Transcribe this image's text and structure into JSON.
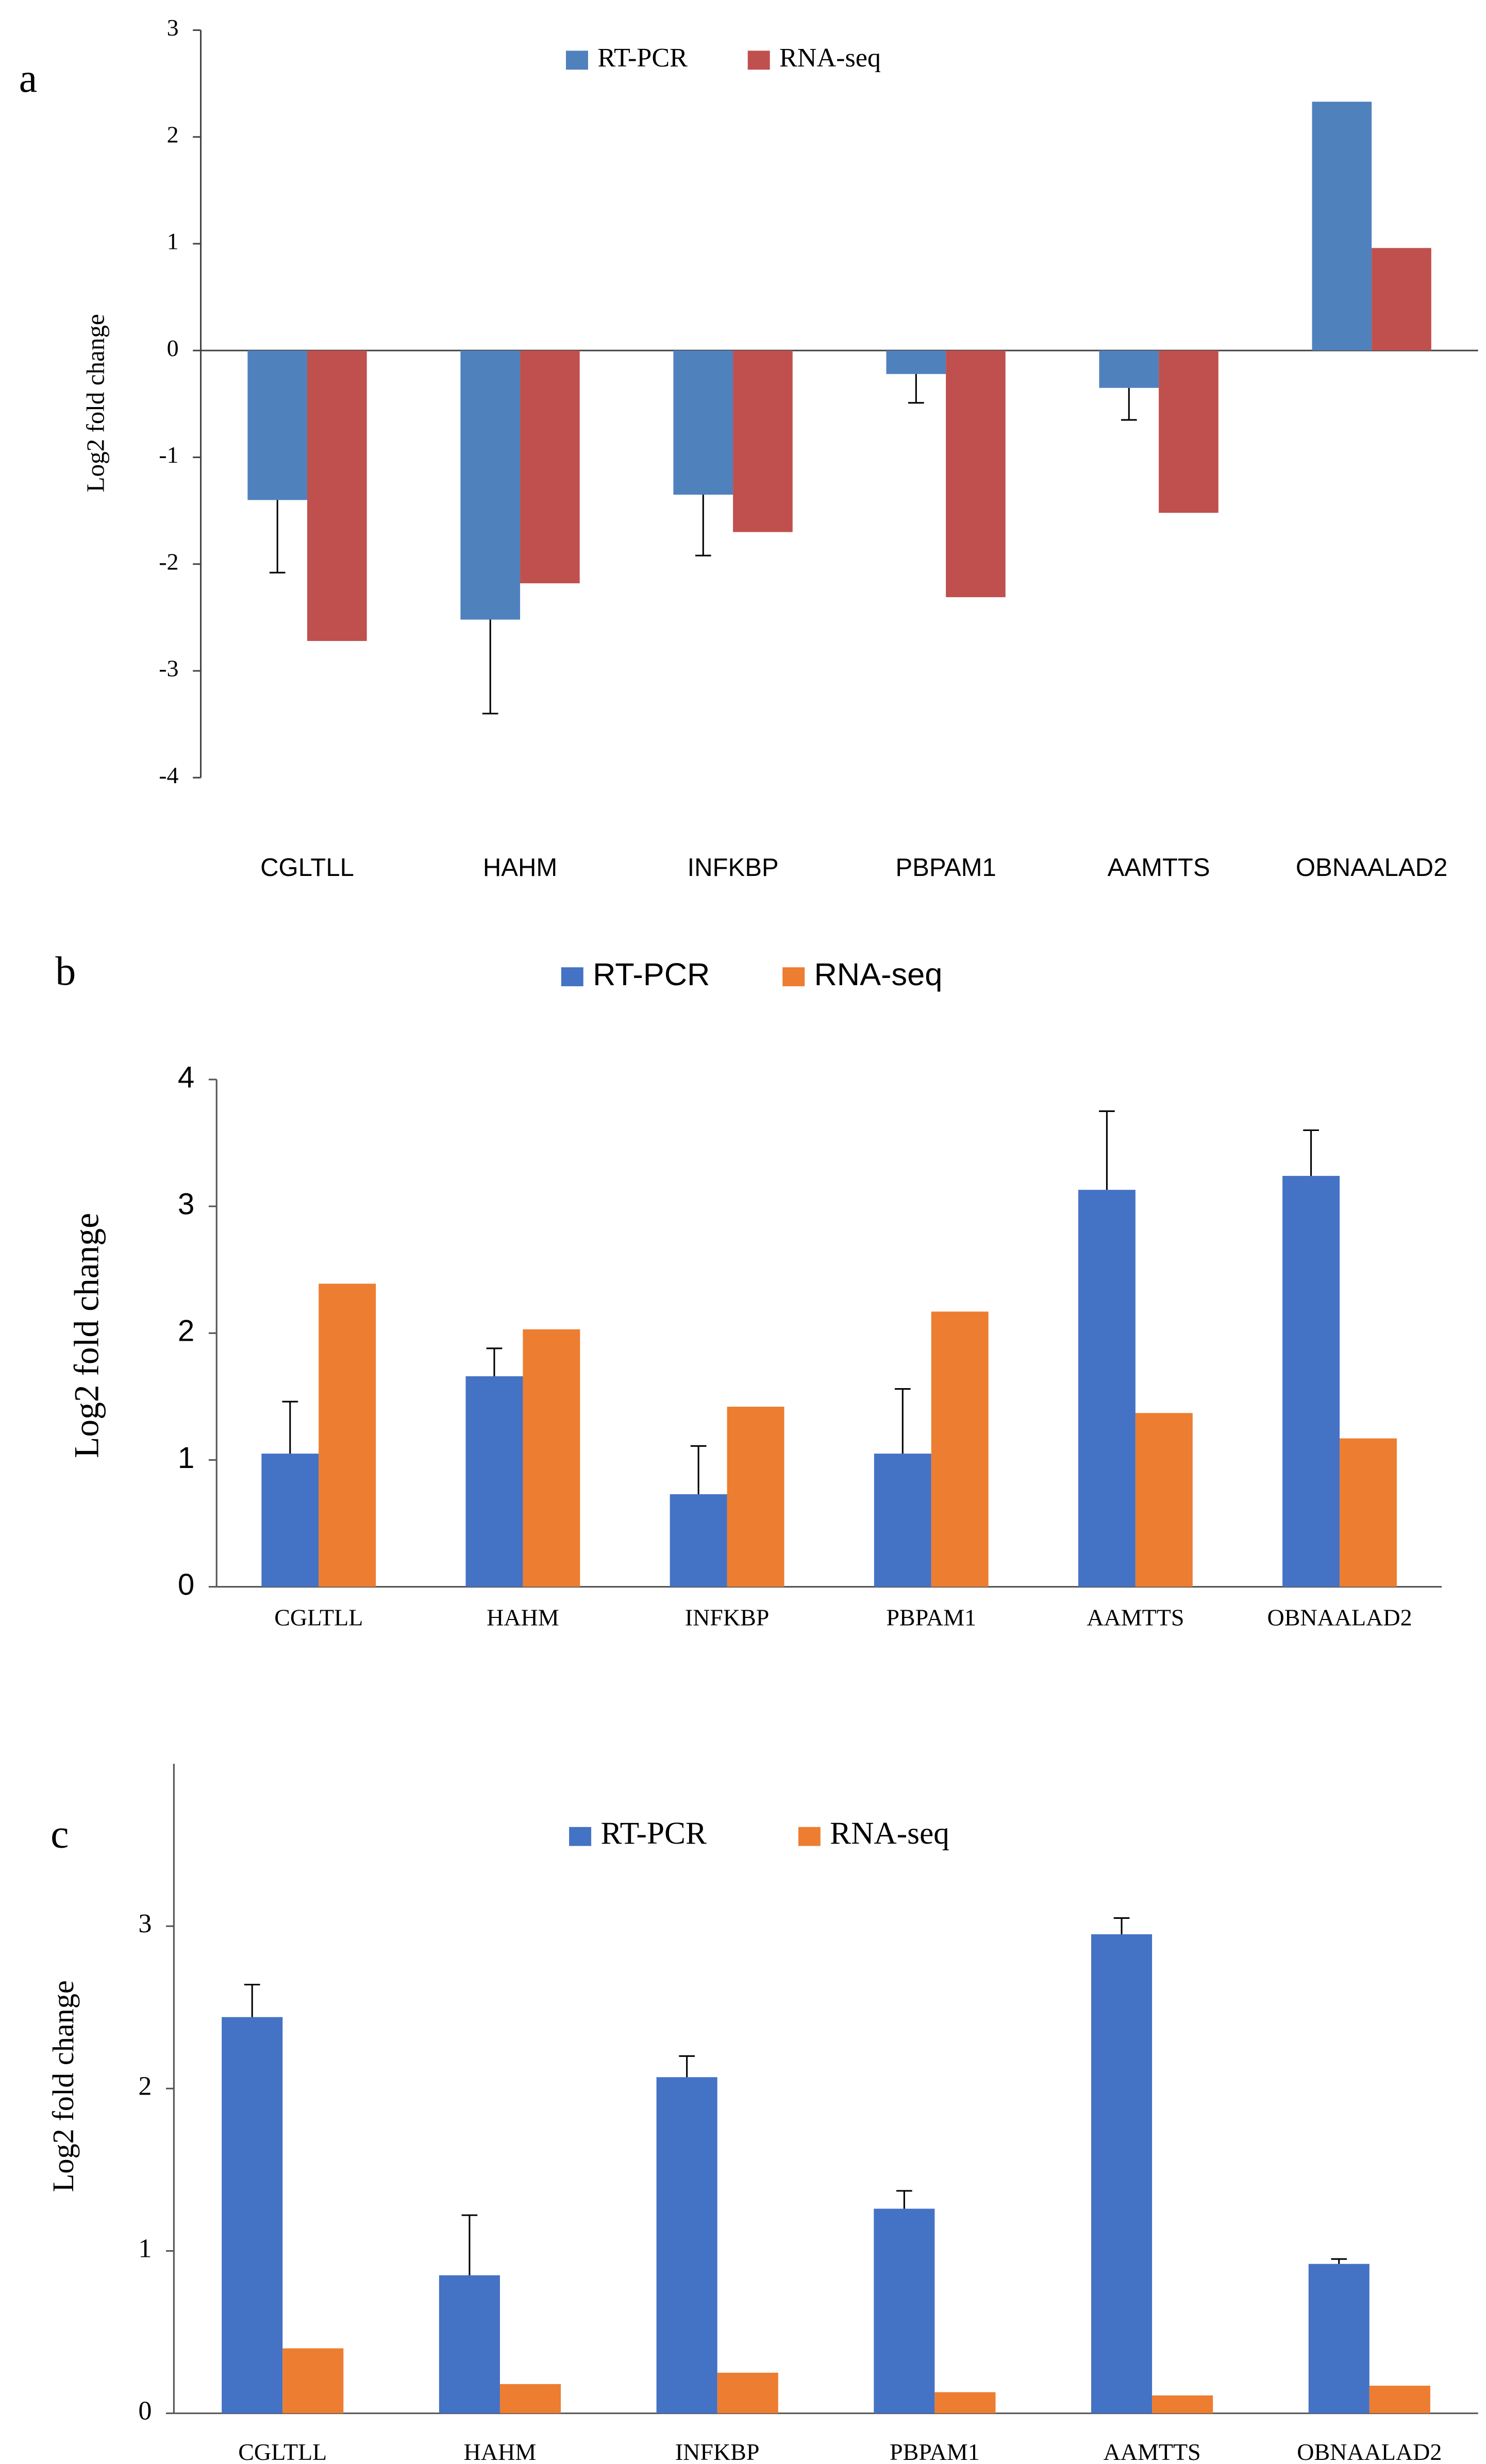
{
  "chart_data": [
    {
      "type": "bar",
      "panel_label": "a",
      "y_label": "Log2 fold change",
      "categories": [
        "CGLTLL",
        "HAHM",
        "INFKBP",
        "PBPAM1",
        "AAMTTS",
        "OBNAALAD2"
      ],
      "series": [
        {
          "name": "RT-PCR",
          "color": "#4f81bd",
          "values": [
            -1.4,
            -2.52,
            -1.35,
            -0.22,
            -0.35,
            2.33
          ],
          "errors": [
            0.68,
            0.88,
            0.57,
            0.27,
            0.3,
            null
          ]
        },
        {
          "name": "RNA-seq",
          "color": "#c0504d",
          "values": [
            -2.72,
            -2.18,
            -1.7,
            -2.31,
            -1.52,
            0.96
          ]
        }
      ],
      "ylim": [
        -4,
        3
      ],
      "yticks": [
        -4,
        -3,
        -2,
        -1,
        0,
        1,
        2,
        3
      ]
    },
    {
      "type": "bar",
      "panel_label": "b",
      "y_label": "Log2 fold change",
      "categories": [
        "CGLTLL",
        "HAHM",
        "INFKBP",
        "PBPAM1",
        "AAMTTS",
        "OBNAALAD2"
      ],
      "series": [
        {
          "name": "RT-PCR",
          "color": "#4472c4",
          "values": [
            1.05,
            1.66,
            0.73,
            1.05,
            3.13,
            3.24
          ],
          "errors": [
            0.41,
            0.22,
            0.38,
            0.51,
            0.62,
            0.36
          ]
        },
        {
          "name": "RNA-seq",
          "color": "#ed7d31",
          "values": [
            2.39,
            2.03,
            1.42,
            2.17,
            1.37,
            1.17
          ]
        }
      ],
      "ylim": [
        0,
        4
      ],
      "yticks": [
        0,
        1,
        2,
        3,
        4
      ]
    },
    {
      "type": "bar",
      "panel_label": "c",
      "y_label": "Log2 fold change",
      "categories": [
        "CGLTLL",
        "HAHM",
        "INFKBP",
        "PBPAM1",
        "AAMTTS",
        "OBNAALAD2"
      ],
      "series": [
        {
          "name": "RT-PCR",
          "color": "#4472c4",
          "values": [
            2.44,
            0.85,
            2.07,
            1.26,
            2.95,
            0.92
          ],
          "errors": [
            0.2,
            0.37,
            0.13,
            0.11,
            0.1,
            0.03
          ]
        },
        {
          "name": "RNA-seq",
          "color": "#ed7d31",
          "values": [
            0.4,
            0.18,
            0.25,
            0.13,
            0.11,
            0.17
          ]
        }
      ],
      "ylim": [
        0,
        4
      ],
      "yticks": [
        0,
        1,
        2,
        3
      ]
    }
  ]
}
